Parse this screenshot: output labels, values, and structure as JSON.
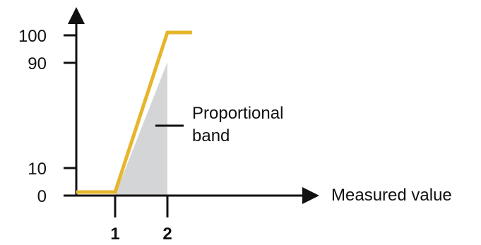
{
  "diagram": {
    "x_axis_label": "Measured value",
    "y_tick_labels": [
      "100",
      "90",
      "10",
      "0"
    ],
    "x_tick_labels": [
      "1",
      "2"
    ],
    "annotation": {
      "line1": "Proportional",
      "line2": "band"
    }
  },
  "colors": {
    "curve": "#e6b52b",
    "band_fill": "#d4d5d7",
    "axis": "#111111"
  }
}
